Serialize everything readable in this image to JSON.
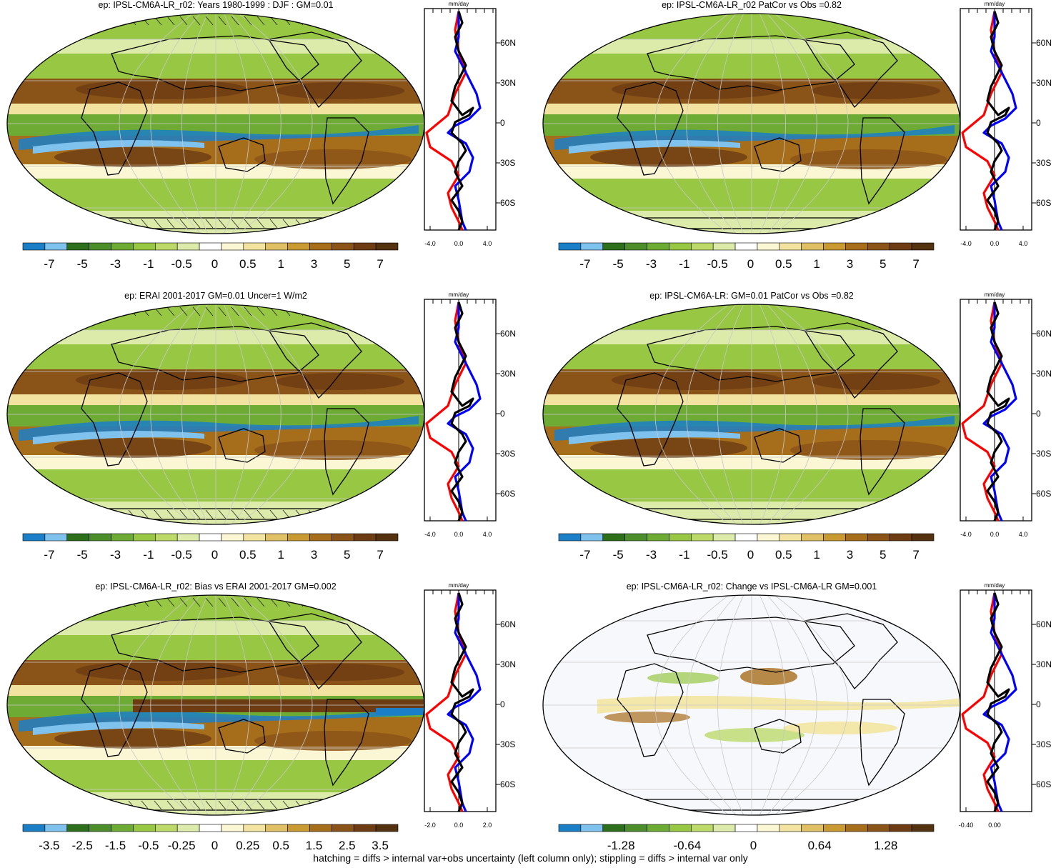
{
  "colors": {
    "scale": [
      "#1b7fc8",
      "#7fc2ee",
      "#2d6f1b",
      "#4b8e2a",
      "#6dab34",
      "#97c743",
      "#bcd96a",
      "#dcebaa",
      "#ffffff",
      "#fbf6d3",
      "#f2e4a0",
      "#e0c065",
      "#c89a31",
      "#a66d1b",
      "#8a5318",
      "#6d3c13",
      "#54310f"
    ],
    "model": "#ff0000",
    "obs": "#0000ff",
    "diff": "#000000"
  },
  "panels": [
    {
      "title": "ep: IPSL-CM6A-LR_r02: Years 1980-1999 : DJF : GM=0.01",
      "colorbar_labels": [
        "-7",
        "-5",
        "-3",
        "-1",
        "-0.5",
        "0",
        "0.5",
        "1",
        "3",
        "5",
        "7"
      ],
      "profile": {
        "unit": "mm/day",
        "x_ticks": [
          "-4.0",
          "0.0",
          "4.0"
        ],
        "y_ticks": [
          "60N",
          "30N",
          "0",
          "30S",
          "60S"
        ]
      },
      "hatching": true
    },
    {
      "title": "ep: IPSL-CM6A-LR_r02 PatCor vs Obs =0.82",
      "colorbar_labels": [
        "-7",
        "-5",
        "-3",
        "-1",
        "-0.5",
        "0",
        "0.5",
        "1",
        "3",
        "5",
        "7"
      ],
      "profile": {
        "unit": "mm/day",
        "x_ticks": [
          "-4.0",
          "0.0",
          "4.0"
        ],
        "y_ticks": [
          "60N",
          "30N",
          "0",
          "30S",
          "60S"
        ]
      },
      "hatching": false
    },
    {
      "title": "ep: ERAI 2001-2017 GM=0.01 Uncer=1 W/m2",
      "colorbar_labels": [
        "-7",
        "-5",
        "-3",
        "-1",
        "-0.5",
        "0",
        "0.5",
        "1",
        "3",
        "5",
        "7"
      ],
      "profile": {
        "unit": "mm/day",
        "x_ticks": [
          "-4.0",
          "0.0",
          "4.0"
        ],
        "y_ticks": [
          "60N",
          "30N",
          "0",
          "30S",
          "60S"
        ]
      },
      "hatching": true
    },
    {
      "title": "ep: IPSL-CM6A-LR: GM=0.01 PatCor vs Obs =0.82",
      "colorbar_labels": [
        "-7",
        "-5",
        "-3",
        "-1",
        "-0.5",
        "0",
        "0.5",
        "1",
        "3",
        "5",
        "7"
      ],
      "profile": {
        "unit": "mm/day",
        "x_ticks": [
          "-4.0",
          "0.0",
          "4.0"
        ],
        "y_ticks": [
          "60N",
          "30N",
          "0",
          "30S",
          "60S"
        ]
      },
      "hatching": false
    },
    {
      "title": "ep: IPSL-CM6A-LR_r02: Bias vs ERAI 2001-2017 GM=0.002",
      "colorbar_labels": [
        "-3.5",
        "-2.5",
        "-1.5",
        "-0.5",
        "-0.25",
        "0",
        "0.25",
        "0.5",
        "1.5",
        "2.5",
        "3.5"
      ],
      "profile": {
        "unit": "mm/day",
        "x_ticks": [
          "-2.0",
          "0.0",
          "2.0"
        ],
        "y_ticks": [
          "60N",
          "30N",
          "0",
          "30S",
          "60S"
        ]
      },
      "hatching": true
    },
    {
      "title": "ep: IPSL-CM6A-LR_r02: Change vs IPSL-CM6A-LR GM=0.001",
      "colorbar_labels": [
        "-1.28",
        "-0.64",
        "0",
        "0.64",
        "1.28"
      ],
      "profile": {
        "unit": "mm/day",
        "x_ticks": [
          "-0.40",
          "0.00"
        ],
        "y_ticks": [
          "60N",
          "30N",
          "0",
          "30S",
          "60S"
        ]
      },
      "hatching": false
    }
  ],
  "footnote": "hatching = diffs > internal var+obs uncertainty (left column only); stippling = diffs > internal var only"
}
